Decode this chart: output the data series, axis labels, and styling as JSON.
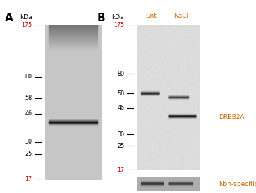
{
  "panel_A_label": "A",
  "panel_B_label": "B",
  "kda_label": "kDa",
  "mw_markers": [
    175,
    80,
    58,
    46,
    30,
    25,
    17
  ],
  "mw_colors": {
    "175": "#cc0000",
    "80": "#000000",
    "58": "#000000",
    "46": "#000000",
    "30": "#000000",
    "25": "#000000",
    "17": "#cc0000"
  },
  "col_header_Unt": "Unt",
  "col_header_NaCl": "NaCl",
  "col_header_color": "#cc6600",
  "label_DREB2A": "DREB2A",
  "label_DREB2A_color": "#cc6600",
  "label_nonspecific": "Non-specific",
  "label_nonspecific_color": "#cc6600",
  "figsize": [
    3.63,
    2.73
  ],
  "dpi": 100,
  "log_min_kda": 17,
  "log_max_kda": 175,
  "panel_A_band_kda": 40,
  "panel_B_DREB2A_kda": 40,
  "panel_B_spot1_kda": 58,
  "panel_B_spot2_kda": 56
}
